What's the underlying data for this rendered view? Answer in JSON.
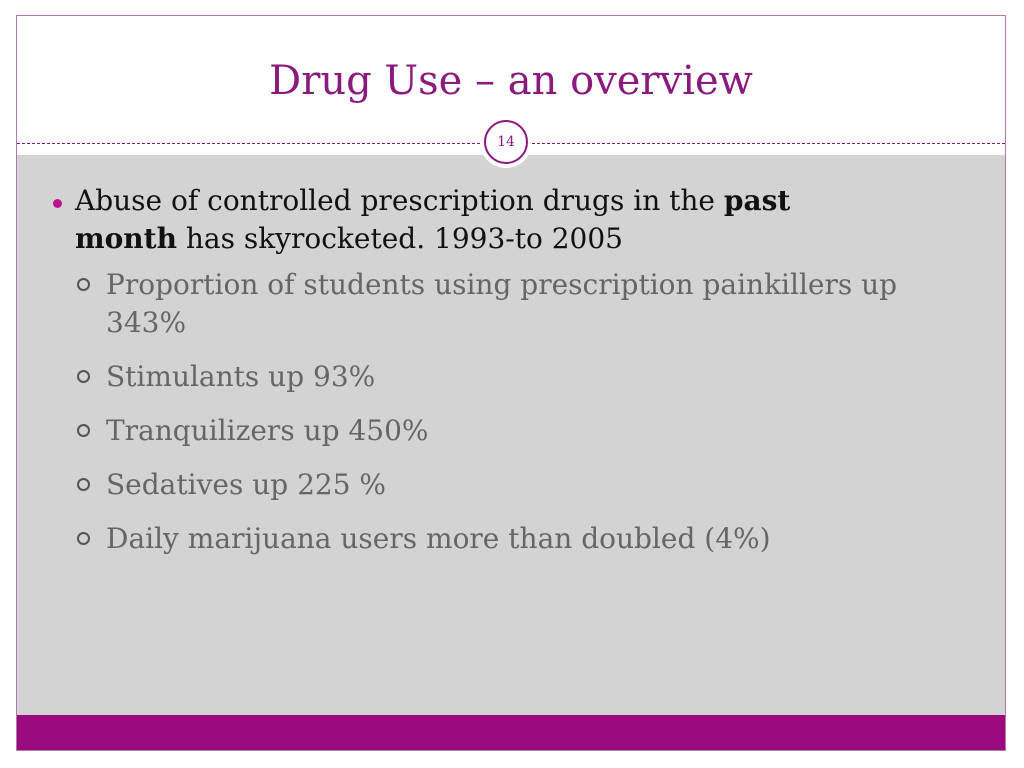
{
  "slide": {
    "title": "Drug Use – an overview",
    "slide_number": "14",
    "colors": {
      "title": "#8b1a7e",
      "accent": "#9b0a7e",
      "bullet": "#c0128e",
      "content_background": "#d3d3d3"
    }
  },
  "content": {
    "main_bullet": {
      "text_before": "Abuse of controlled prescription drugs in the ",
      "bold_1": "past",
      "bold_2": "month",
      "text_after": " has skyrocketed. 1993-to 2005"
    },
    "sub_bullets": [
      "Proportion of students using prescription painkillers up 343%",
      "Stimulants up 93%",
      "Tranquilizers up 450%",
      "Sedatives up 225 %",
      "Daily marijuana users more than doubled (4%)"
    ]
  }
}
